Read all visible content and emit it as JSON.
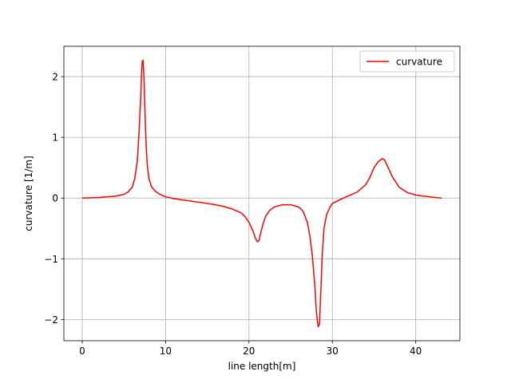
{
  "chart_data": {
    "type": "line",
    "title": "",
    "xlabel": "line length[m]",
    "ylabel": "curvature [1/m]",
    "xlim": [
      -2.2,
      45.3
    ],
    "ylim": [
      -2.35,
      2.5
    ],
    "xticks": [
      0,
      10,
      20,
      30,
      40
    ],
    "yticks": [
      -2,
      -1,
      0,
      1,
      2
    ],
    "xtick_labels": [
      "0",
      "10",
      "20",
      "30",
      "40"
    ],
    "ytick_labels": [
      "−2",
      "−1",
      "0",
      "1",
      "2"
    ],
    "grid": true,
    "legend": {
      "position": "top-right"
    },
    "series": [
      {
        "name": "curvature",
        "color": "#ff0000",
        "x": [
          0,
          1,
          2,
          3,
          4,
          5,
          5.5,
          6,
          6.3,
          6.6,
          6.8,
          7.0,
          7.1,
          7.2,
          7.3,
          7.4,
          7.5,
          7.6,
          7.7,
          7.8,
          8.0,
          8.3,
          8.7,
          9.2,
          10,
          11,
          12,
          13,
          14,
          15,
          16,
          17,
          18,
          19,
          19.5,
          20,
          20.5,
          20.8,
          21.0,
          21.2,
          21.4,
          21.7,
          22,
          22.5,
          23,
          24,
          25,
          26,
          26.5,
          27,
          27.3,
          27.6,
          27.9,
          28.1,
          28.3,
          28.45,
          28.6,
          28.8,
          29.0,
          29.3,
          29.7,
          30,
          31,
          32,
          33,
          34,
          34.5,
          35,
          35.5,
          36,
          36.3,
          36.7,
          37.2,
          38,
          39,
          40,
          41,
          42,
          43.1
        ],
        "values": [
          0.0,
          0.005,
          0.01,
          0.02,
          0.03,
          0.06,
          0.1,
          0.18,
          0.32,
          0.6,
          1.05,
          1.6,
          2.0,
          2.25,
          2.27,
          2.0,
          1.55,
          1.1,
          0.78,
          0.55,
          0.32,
          0.19,
          0.12,
          0.07,
          0.02,
          -0.01,
          -0.03,
          -0.05,
          -0.07,
          -0.09,
          -0.11,
          -0.14,
          -0.18,
          -0.24,
          -0.3,
          -0.4,
          -0.55,
          -0.67,
          -0.72,
          -0.7,
          -0.58,
          -0.42,
          -0.3,
          -0.2,
          -0.15,
          -0.11,
          -0.11,
          -0.15,
          -0.22,
          -0.4,
          -0.62,
          -0.95,
          -1.45,
          -1.9,
          -2.12,
          -2.08,
          -1.6,
          -0.9,
          -0.5,
          -0.28,
          -0.15,
          -0.09,
          -0.02,
          0.04,
          0.1,
          0.22,
          0.34,
          0.5,
          0.6,
          0.65,
          0.62,
          0.5,
          0.35,
          0.18,
          0.09,
          0.05,
          0.03,
          0.015,
          0.0
        ]
      }
    ]
  }
}
